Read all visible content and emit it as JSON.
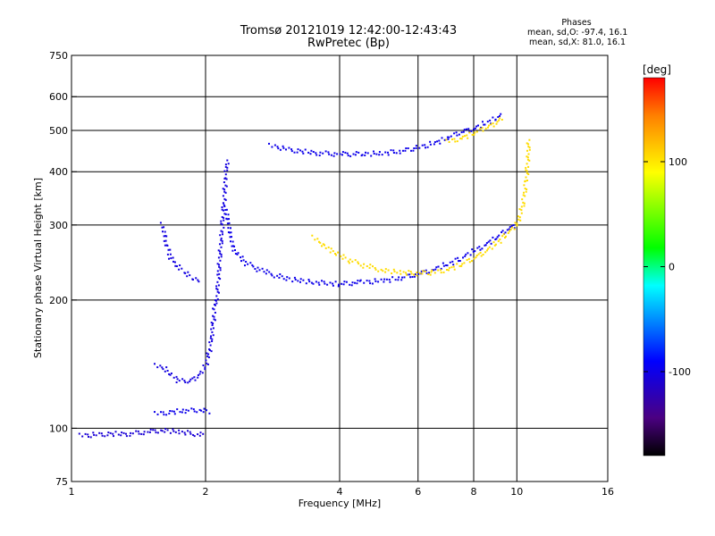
{
  "title": {
    "line1": "Tromsø 20121019 12:42:00-12:43:43",
    "line2": "RwPretec (Bp)"
  },
  "stats": {
    "heading": "Phases",
    "o_mode": "mean, sd,O: -97.4, 16.1",
    "x_mode": "mean, sd,X: 81.0, 16.1"
  },
  "chart_data": {
    "type": "scatter",
    "title": "Tromsø 20121019 12:42:00-12:43:43 RwPretec (Bp)",
    "xlabel": "Frequency [MHz]",
    "ylabel": "Stationary phase Virtual Height [km]",
    "xscale": "log",
    "yscale": "log",
    "xlim": [
      1,
      16
    ],
    "ylim": [
      75,
      750
    ],
    "x_ticks": [
      1,
      2,
      4,
      6,
      8,
      10,
      16
    ],
    "y_ticks": [
      75,
      100,
      200,
      300,
      400,
      500,
      600,
      750
    ],
    "grid": true,
    "colorbar": {
      "label": "[deg]",
      "range": [
        -180,
        180
      ],
      "ticks": [
        100,
        0,
        -100
      ],
      "colors": [
        "#000000",
        "#4b0082",
        "#0000ff",
        "#00ffff",
        "#00ff00",
        "#ffff00",
        "#ff8000",
        "#ff0000"
      ]
    },
    "series": [
      {
        "traces": [
          {
            "phase": -110,
            "points": [
              [
                1.05,
                96
              ],
              [
                1.2,
                97
              ],
              [
                1.35,
                97
              ],
              [
                1.48,
                98
              ],
              [
                1.6,
                99
              ],
              [
                1.75,
                98
              ],
              [
                1.9,
                97
              ],
              [
                2.0,
                96
              ]
            ]
          },
          {
            "phase": -100,
            "points": [
              [
                1.55,
                108
              ],
              [
                1.65,
                109
              ],
              [
                1.8,
                110
              ],
              [
                1.95,
                110
              ],
              [
                2.05,
                109
              ]
            ]
          },
          {
            "phase": -105,
            "points": [
              [
                1.55,
                140
              ],
              [
                1.62,
                138
              ],
              [
                1.72,
                130
              ],
              [
                1.82,
                128
              ],
              [
                1.92,
                132
              ],
              [
                2.0,
                140
              ],
              [
                2.05,
                155
              ],
              [
                2.08,
                175
              ],
              [
                2.1,
                195
              ],
              [
                2.12,
                200
              ],
              [
                2.14,
                230
              ],
              [
                2.17,
                280
              ],
              [
                2.2,
                340
              ],
              [
                2.22,
                390
              ],
              [
                2.24,
                430
              ]
            ]
          },
          {
            "phase": -105,
            "points": [
              [
                1.6,
                300
              ],
              [
                1.62,
                280
              ],
              [
                1.66,
                255
              ],
              [
                1.72,
                240
              ],
              [
                1.8,
                232
              ],
              [
                1.88,
                225
              ],
              [
                1.95,
                222
              ]
            ]
          },
          {
            "phase": -100,
            "points": [
              [
                2.22,
                330
              ],
              [
                2.3,
                265
              ],
              [
                2.45,
                245
              ],
              [
                2.7,
                233
              ],
              [
                3.0,
                225
              ],
              [
                3.5,
                220
              ],
              [
                4.0,
                218
              ],
              [
                4.5,
                220
              ],
              [
                5.0,
                222
              ],
              [
                5.5,
                225
              ],
              [
                6.0,
                230
              ],
              [
                6.5,
                236
              ],
              [
                7.0,
                243
              ],
              [
                7.5,
                250
              ],
              [
                8.0,
                260
              ],
              [
                8.5,
                270
              ],
              [
                9.0,
                280
              ],
              [
                9.5,
                292
              ],
              [
                10.0,
                300
              ]
            ]
          },
          {
            "phase": -100,
            "points": [
              [
                2.8,
                460
              ],
              [
                3.2,
                448
              ],
              [
                3.6,
                442
              ],
              [
                4.0,
                440
              ],
              [
                4.5,
                440
              ],
              [
                5.0,
                442
              ],
              [
                5.5,
                447
              ],
              [
                6.0,
                455
              ],
              [
                6.5,
                466
              ],
              [
                7.0,
                480
              ],
              [
                7.5,
                495
              ],
              [
                8.0,
                505
              ],
              [
                8.5,
                520
              ],
              [
                9.0,
                535
              ],
              [
                9.3,
                545
              ]
            ]
          }
        ]
      },
      {
        "traces": [
          {
            "phase": 105,
            "points": [
              [
                3.5,
                280
              ],
              [
                3.8,
                262
              ],
              [
                4.2,
                248
              ],
              [
                4.6,
                240
              ],
              [
                5.0,
                235
              ],
              [
                5.5,
                232
              ],
              [
                6.0,
                231
              ],
              [
                6.5,
                232
              ],
              [
                7.0,
                236
              ],
              [
                7.5,
                242
              ],
              [
                8.0,
                250
              ],
              [
                8.5,
                260
              ],
              [
                9.0,
                272
              ],
              [
                9.5,
                285
              ],
              [
                10.0,
                300
              ],
              [
                10.3,
                330
              ],
              [
                10.5,
                380
              ],
              [
                10.6,
                440
              ],
              [
                10.65,
                480
              ]
            ]
          },
          {
            "phase": 105,
            "points": [
              [
                7.0,
                470
              ],
              [
                7.5,
                480
              ],
              [
                8.0,
                492
              ],
              [
                8.5,
                505
              ],
              [
                9.0,
                520
              ],
              [
                9.3,
                540
              ]
            ]
          }
        ]
      }
    ]
  }
}
